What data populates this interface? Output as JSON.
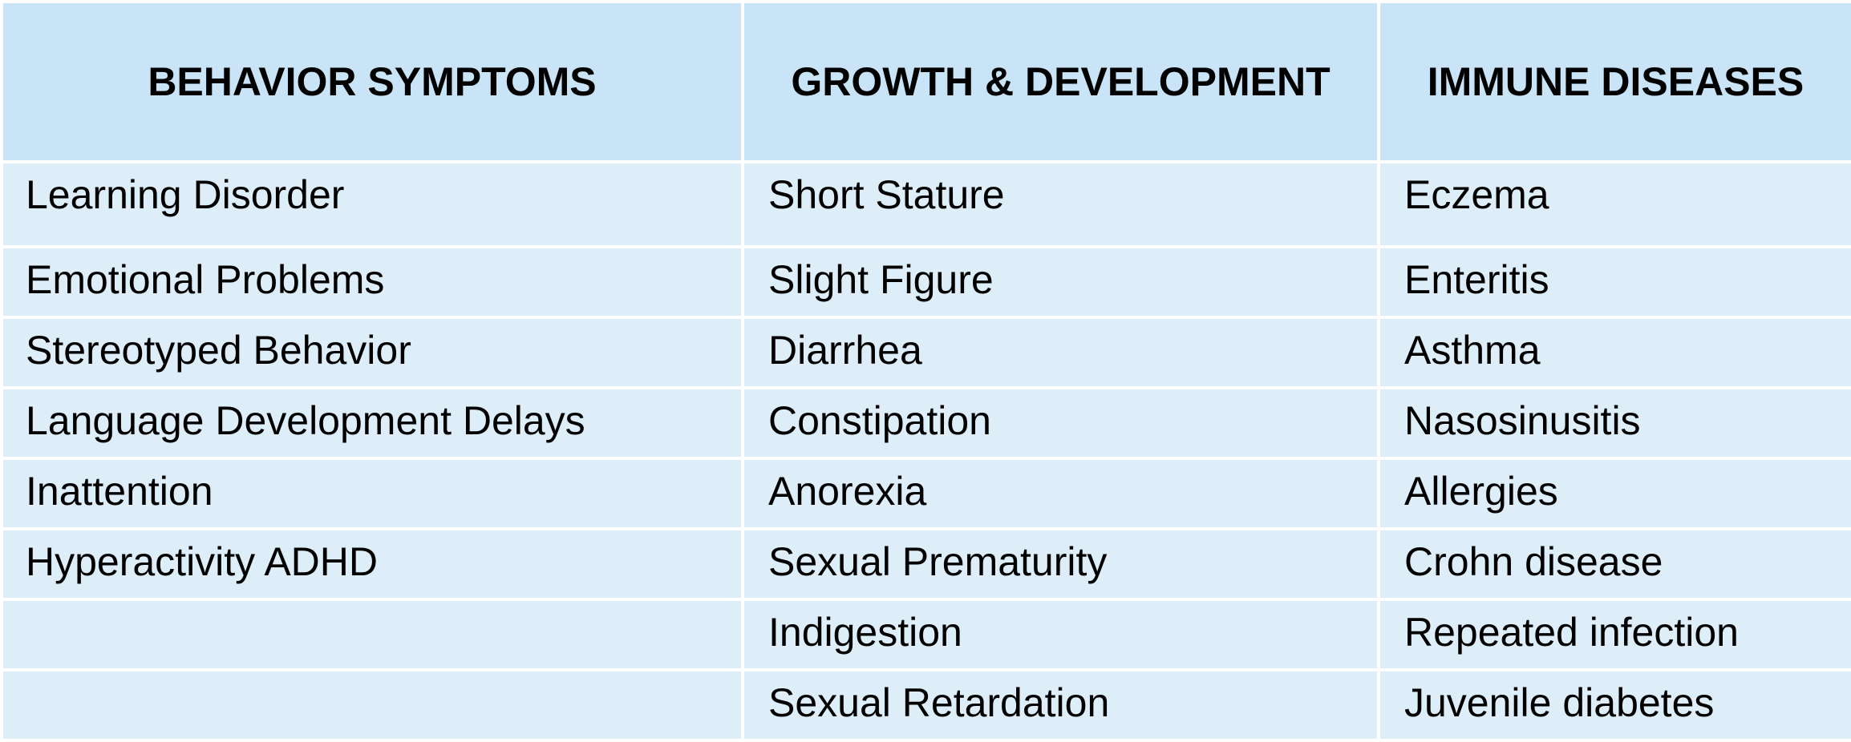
{
  "table": {
    "headers": [
      "BEHAVIOR SYMPTOMS",
      "GROWTH & DEVELOPMENT",
      "IMMUNE DISEASES"
    ],
    "rows": [
      [
        "Learning Disorder",
        "Short Stature",
        "Eczema"
      ],
      [
        "Emotional Problems",
        "Slight Figure",
        "Enteritis"
      ],
      [
        "Stereotyped Behavior",
        "Diarrhea",
        "Asthma"
      ],
      [
        "Language Development Delays",
        "Constipation",
        "Nasosinusitis"
      ],
      [
        "Inattention",
        "Anorexia",
        "Allergies"
      ],
      [
        "Hyperactivity ADHD",
        "Sexual Prematurity",
        "Crohn disease"
      ],
      [
        "",
        "Indigestion",
        "Repeated infection"
      ],
      [
        "",
        "Sexual Retardation",
        "Juvenile diabetes"
      ]
    ]
  },
  "colors": {
    "header_bg": "#c9e4f6",
    "cell_bg": "#ddeef9",
    "border": "#ffffff",
    "text": "#000000"
  }
}
